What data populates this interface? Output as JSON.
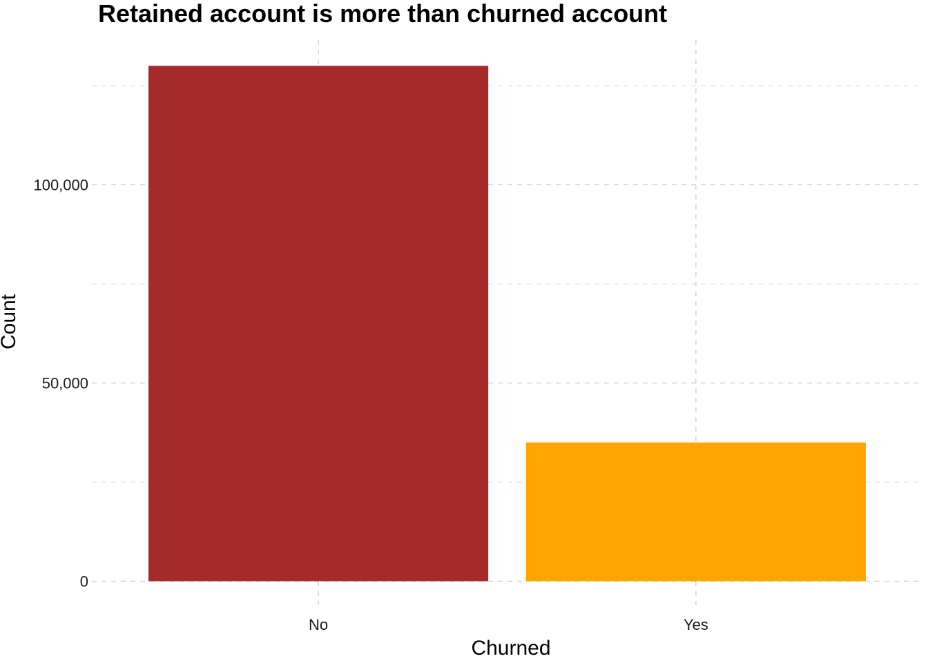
{
  "chart_data": {
    "type": "bar",
    "title": "Retained account is more than churned account",
    "xlabel": "Churned",
    "ylabel": "Count",
    "categories": [
      "No",
      "Yes"
    ],
    "values": [
      130000,
      35000
    ],
    "colors": [
      "#a52a2a",
      "#ffa500"
    ],
    "ylim": [
      -6000,
      136500
    ],
    "y_major_ticks": [
      0,
      50000,
      100000
    ],
    "y_major_tick_labels": [
      "0",
      "50,000",
      "100,000"
    ],
    "y_minor_ticks": [
      25000,
      75000,
      125000
    ],
    "grid": true,
    "legend": "none"
  }
}
